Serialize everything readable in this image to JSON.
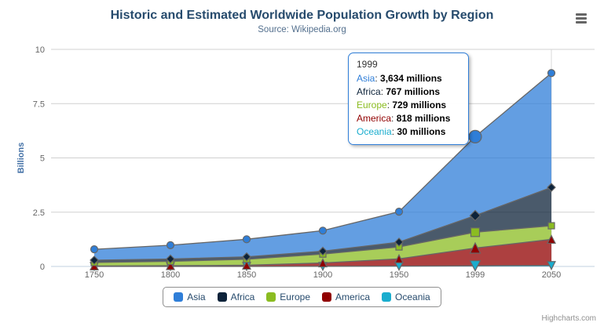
{
  "chart": {
    "title": "Historic and Estimated Worldwide Population Growth by Region",
    "subtitle": "Source: Wikipedia.org",
    "credits": "Highcharts.com",
    "menu_icon": "hamburger-menu-icon",
    "background_color": "#ffffff",
    "title_color": "#274b6d",
    "subtitle_color": "#54708e"
  },
  "chart_data": {
    "type": "area",
    "stacking": "normal",
    "title": "Historic and Estimated Worldwide Population Growth by Region",
    "subtitle": "Source: Wikipedia.org",
    "xlabel": "",
    "ylabel": "Billions",
    "categories": [
      "1750",
      "1800",
      "1850",
      "1900",
      "1950",
      "1999",
      "2050"
    ],
    "y_ticks": [
      0,
      2.5,
      5,
      7.5,
      10
    ],
    "ylim": [
      0,
      10
    ],
    "grid": true,
    "legend_position": "bottom",
    "values_unit": "millions",
    "hover_index": 5,
    "line_color": "#666666",
    "fill_opacity": 0.75,
    "series": [
      {
        "name": "Asia",
        "color": "#2f7ed8",
        "marker": "circle",
        "values": [
          502,
          635,
          809,
          947,
          1402,
          3634,
          5268
        ]
      },
      {
        "name": "Africa",
        "color": "#0d233a",
        "marker": "diamond",
        "values": [
          106,
          107,
          111,
          133,
          221,
          767,
          1766
        ]
      },
      {
        "name": "Europe",
        "color": "#8bbc21",
        "marker": "square",
        "values": [
          163,
          203,
          276,
          408,
          547,
          729,
          628
        ]
      },
      {
        "name": "America",
        "color": "#910000",
        "marker": "triangle",
        "values": [
          18,
          31,
          54,
          156,
          339,
          818,
          1201
        ]
      },
      {
        "name": "Oceania",
        "color": "#1aadce",
        "marker": "triangle-down",
        "values": [
          2,
          2,
          2,
          6,
          13,
          30,
          46
        ]
      }
    ],
    "stack_order_bottom_to_top": [
      "Oceania",
      "America",
      "Europe",
      "Africa",
      "Asia"
    ]
  },
  "tooltip": {
    "header": "1999",
    "rows": [
      {
        "name": "Asia",
        "value": "3,634 millions",
        "color": "#2f7ed8"
      },
      {
        "name": "Africa",
        "value": "767 millions",
        "color": "#0d233a"
      },
      {
        "name": "Europe",
        "value": "729 millions",
        "color": "#8bbc21"
      },
      {
        "name": "America",
        "value": "818 millions",
        "color": "#910000"
      },
      {
        "name": "Oceania",
        "value": "30 millions",
        "color": "#1aadce"
      }
    ]
  },
  "legend": {
    "items": [
      {
        "label": "Asia",
        "color": "#2f7ed8"
      },
      {
        "label": "Africa",
        "color": "#0d233a"
      },
      {
        "label": "Europe",
        "color": "#8bbc21"
      },
      {
        "label": "America",
        "color": "#910000"
      },
      {
        "label": "Oceania",
        "color": "#1aadce"
      }
    ]
  }
}
